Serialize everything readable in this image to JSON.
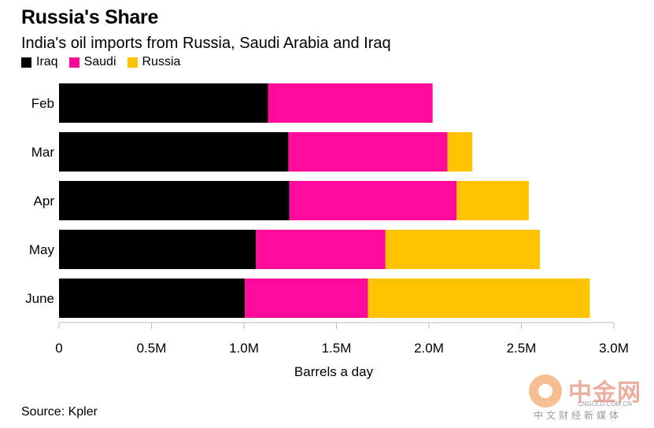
{
  "header": {
    "title": "Russia's Share",
    "subtitle": "India's oil imports from Russia, Saudi Arabia and Iraq"
  },
  "colors": {
    "iraq": "#000000",
    "saudi": "#ff0a9a",
    "russia": "#ffc300",
    "axis": "#bdbdbd"
  },
  "chart_data": {
    "type": "bar",
    "orientation": "horizontal",
    "stacked": true,
    "categories": [
      "Feb",
      "Mar",
      "Apr",
      "May",
      "June"
    ],
    "series": [
      {
        "name": "Iraq",
        "color": "#000000",
        "values": [
          1130000,
          1240000,
          1245000,
          1065000,
          1005000
        ]
      },
      {
        "name": "Saudi",
        "color": "#ff0a9a",
        "values": [
          890000,
          860000,
          905000,
          700000,
          665000
        ]
      },
      {
        "name": "Russia",
        "color": "#ffc300",
        "values": [
          0,
          135000,
          390000,
          835000,
          1200000
        ]
      }
    ],
    "xlim": [
      0,
      3000000
    ],
    "xticks": [
      0,
      500000,
      1000000,
      1500000,
      2000000,
      2500000,
      3000000
    ],
    "xtick_labels": [
      "0",
      "0.5M",
      "1.0M",
      "1.5M",
      "2.0M",
      "2.5M",
      "3.0M"
    ],
    "xlabel": "Barrels a day",
    "legend_position": "top-left",
    "grid": false
  },
  "footer": {
    "source": "Source: Kpler",
    "watermark_cn": "中金网",
    "watermark_url": "CNGOLD.COM.CN",
    "watermark_sub": "中文财经新媒体"
  }
}
